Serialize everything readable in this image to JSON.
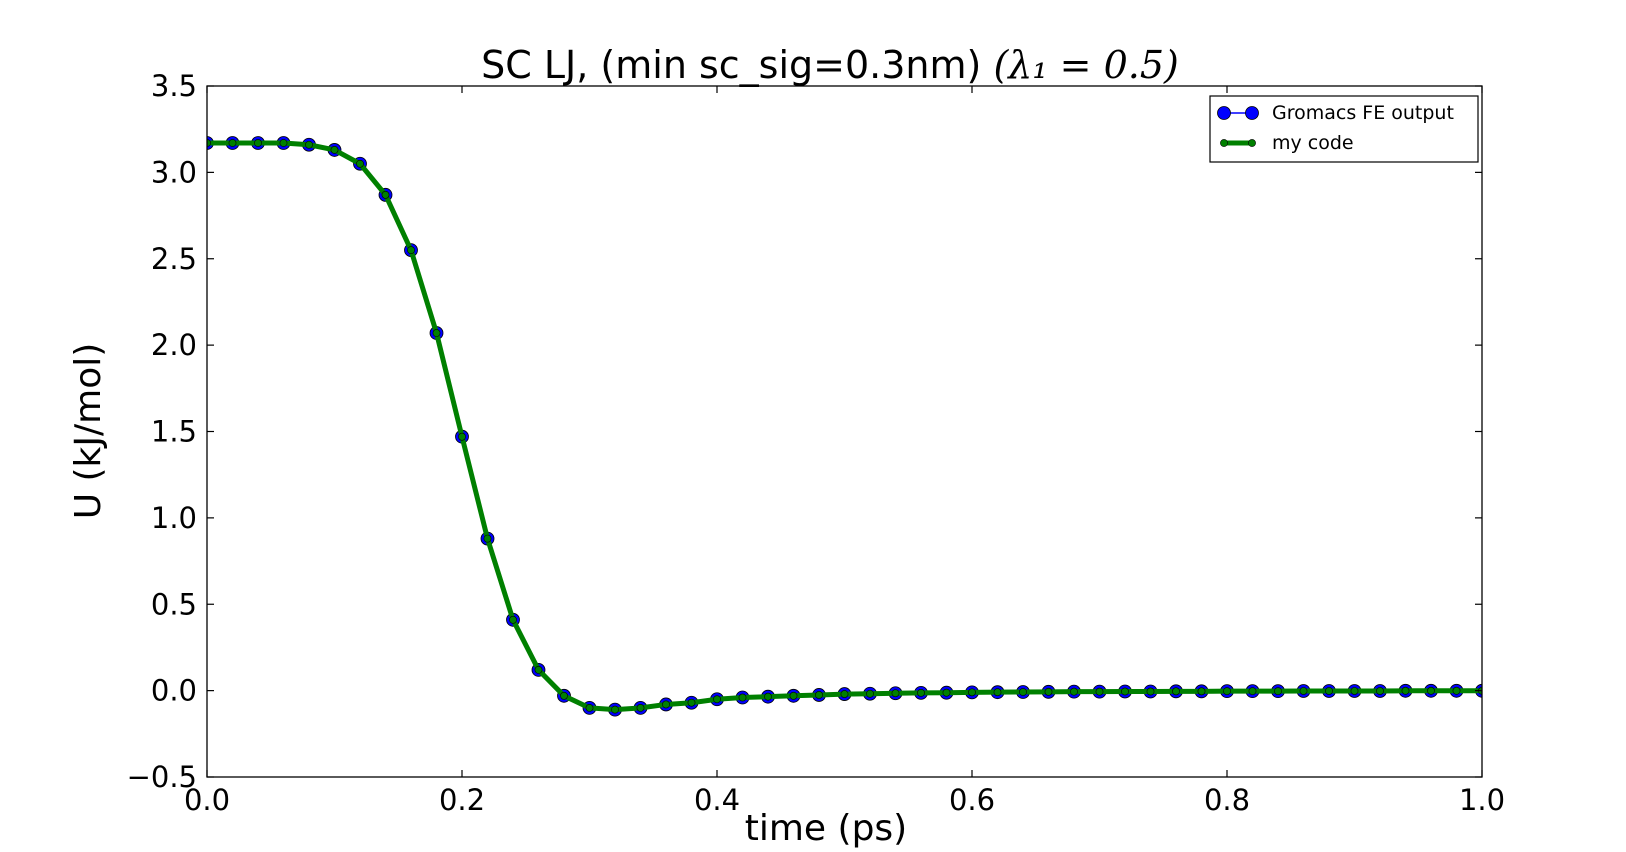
{
  "chart_data": {
    "type": "line",
    "title": "SC LJ, (min sc_sig=0.3nm) ",
    "title_math": "(λ₁ = 0.5)",
    "xlabel": "time (ps)",
    "ylabel": "U (kJ/mol)",
    "xlim": [
      0.0,
      1.0
    ],
    "ylim": [
      -0.5,
      3.5
    ],
    "xticks": [
      "0.0",
      "0.2",
      "0.4",
      "0.6",
      "0.8",
      "1.0"
    ],
    "yticks": [
      "−0.5",
      "0.0",
      "0.5",
      "1.0",
      "1.5",
      "2.0",
      "2.5",
      "3.0",
      "3.5"
    ],
    "grid": false,
    "legend_position": "top-right",
    "x": [
      0.0,
      0.02,
      0.04,
      0.06,
      0.08,
      0.1,
      0.12,
      0.14,
      0.16,
      0.18,
      0.2,
      0.22,
      0.24,
      0.26,
      0.28,
      0.3,
      0.32,
      0.34,
      0.36,
      0.38,
      0.4,
      0.42,
      0.44,
      0.46,
      0.48,
      0.5,
      0.52,
      0.54,
      0.56,
      0.58,
      0.6,
      0.62,
      0.64,
      0.66,
      0.68,
      0.7,
      0.72,
      0.74,
      0.76,
      0.78,
      0.8,
      0.82,
      0.84,
      0.86,
      0.88,
      0.9,
      0.92,
      0.94,
      0.96,
      0.98,
      1.0
    ],
    "series": [
      {
        "name": "Gromacs FE output",
        "color": "#0000ff",
        "style": "line-with-large-markers",
        "values": [
          3.17,
          3.17,
          3.17,
          3.17,
          3.16,
          3.13,
          3.05,
          2.87,
          2.55,
          2.07,
          1.47,
          0.88,
          0.41,
          0.12,
          -0.03,
          -0.1,
          -0.11,
          -0.1,
          -0.08,
          -0.07,
          -0.05,
          -0.04,
          -0.035,
          -0.03,
          -0.025,
          -0.02,
          -0.018,
          -0.015,
          -0.013,
          -0.012,
          -0.01,
          -0.009,
          -0.008,
          -0.007,
          -0.006,
          -0.006,
          -0.005,
          -0.005,
          -0.004,
          -0.004,
          -0.003,
          -0.003,
          -0.003,
          -0.002,
          -0.002,
          -0.002,
          -0.002,
          -0.001,
          -0.001,
          -0.001,
          -0.001
        ]
      },
      {
        "name": "my code",
        "color": "#008000",
        "style": "thick-line-with-small-markers",
        "values": [
          3.17,
          3.17,
          3.17,
          3.17,
          3.16,
          3.13,
          3.05,
          2.87,
          2.55,
          2.07,
          1.47,
          0.88,
          0.41,
          0.12,
          -0.03,
          -0.1,
          -0.11,
          -0.1,
          -0.08,
          -0.07,
          -0.05,
          -0.04,
          -0.035,
          -0.03,
          -0.025,
          -0.02,
          -0.018,
          -0.015,
          -0.013,
          -0.012,
          -0.01,
          -0.009,
          -0.008,
          -0.007,
          -0.006,
          -0.006,
          -0.005,
          -0.005,
          -0.004,
          -0.004,
          -0.003,
          -0.003,
          -0.003,
          -0.002,
          -0.002,
          -0.002,
          -0.002,
          -0.001,
          -0.001,
          -0.001,
          -0.001
        ]
      }
    ]
  }
}
